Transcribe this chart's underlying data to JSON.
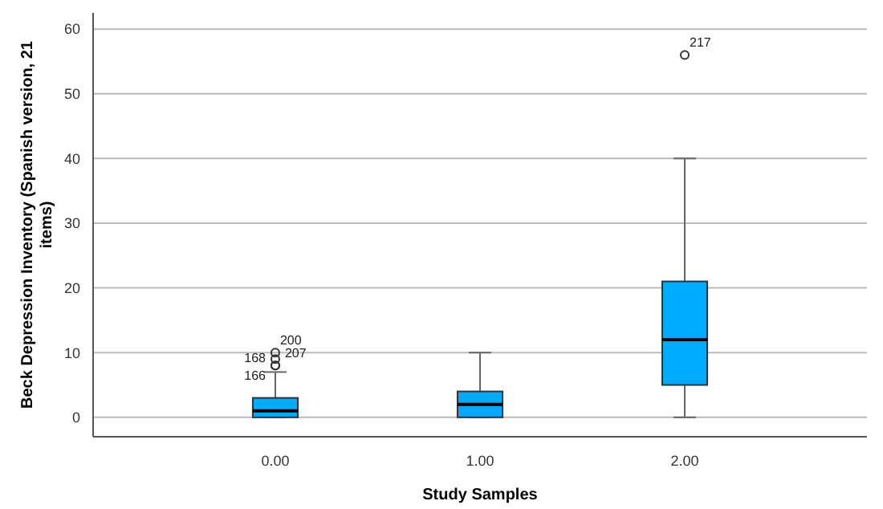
{
  "chart_data": {
    "type": "box",
    "xlabel": "Study Samples",
    "ylabel": "Beck Depression Inventory (Spanish version, 21 items)",
    "categories": [
      "0.00",
      "1.00",
      "2.00"
    ],
    "color": "#00aaff",
    "boxes": [
      {
        "low": 0,
        "q1": 0,
        "median": 1,
        "q3": 3,
        "high": 7,
        "outliers": [
          8,
          8,
          9,
          10
        ]
      },
      {
        "low": 0,
        "q1": 0,
        "median": 2,
        "q3": 4,
        "high": 10
      },
      {
        "low": 0,
        "q1": 5,
        "median": 12,
        "q3": 21,
        "high": 40,
        "outliers": [
          56
        ]
      }
    ],
    "ylim": [
      -3,
      62.5
    ],
    "yticks": [
      0,
      10,
      20,
      30,
      40,
      50,
      60
    ],
    "grid": "y",
    "annotations": [
      "168",
      "166",
      "207",
      "200",
      "217"
    ]
  }
}
